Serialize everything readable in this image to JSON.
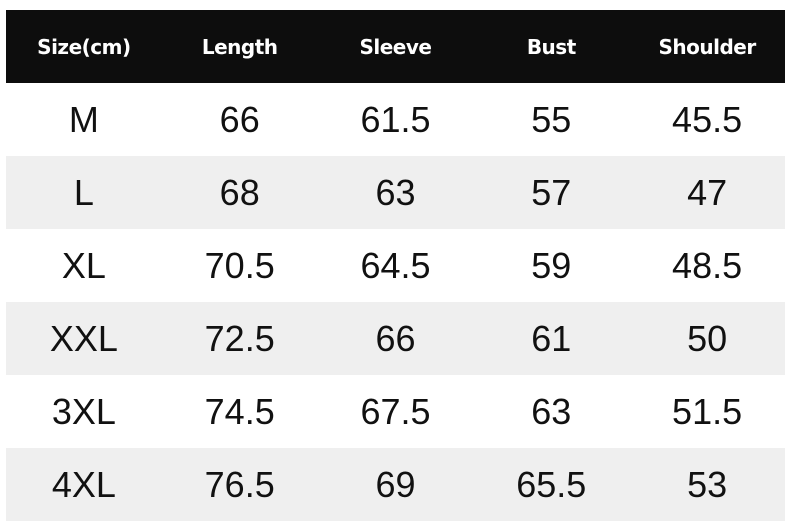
{
  "table": {
    "header": [
      "Size(cm)",
      "Length",
      "Sleeve",
      "Bust",
      "Shoulder"
    ],
    "rows": [
      [
        "M",
        "66",
        "61.5",
        "55",
        "45.5"
      ],
      [
        "L",
        "68",
        "63",
        "57",
        "47"
      ],
      [
        "XL",
        "70.5",
        "64.5",
        "59",
        "48.5"
      ],
      [
        "XXL",
        "72.5",
        "66",
        "61",
        "50"
      ],
      [
        "3XL",
        "74.5",
        "67.5",
        "63",
        "51.5"
      ],
      [
        "4XL",
        "76.5",
        "69",
        "65.5",
        "53"
      ]
    ]
  }
}
